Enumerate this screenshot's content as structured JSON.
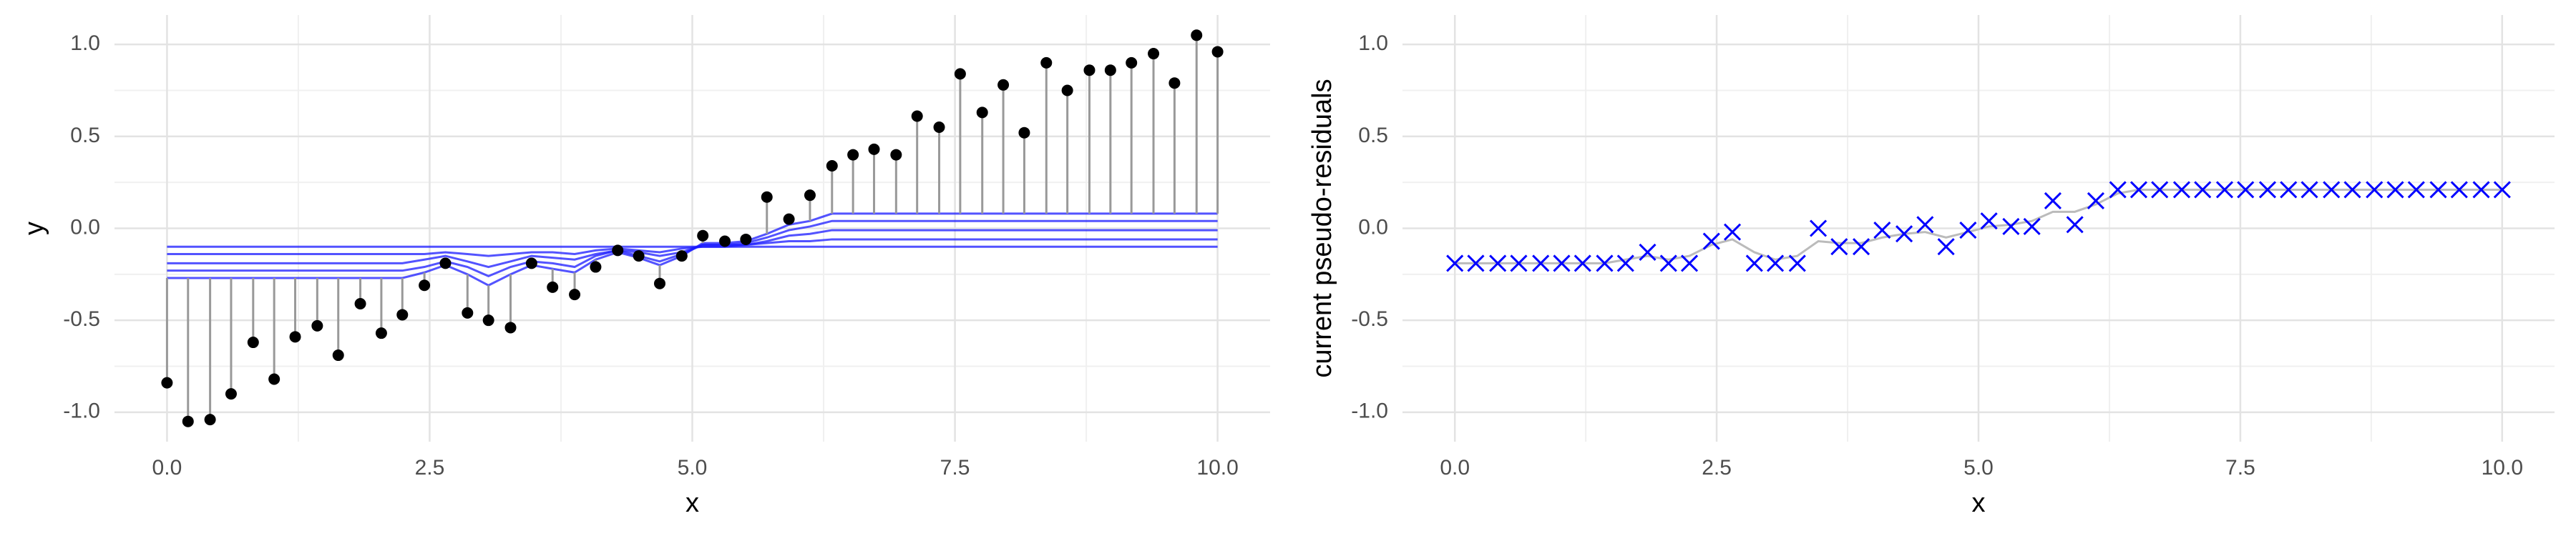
{
  "chart_data": [
    {
      "type": "stem",
      "xlabel": "x",
      "ylabel": "y",
      "x": [
        0,
        0.2,
        0.41,
        0.61,
        0.82,
        1.02,
        1.22,
        1.43,
        1.63,
        1.84,
        2.04,
        2.24,
        2.45,
        2.65,
        2.86,
        3.06,
        3.27,
        3.47,
        3.67,
        3.88,
        4.08,
        4.29,
        4.49,
        4.69,
        4.9,
        5.1,
        5.31,
        5.51,
        5.71,
        5.92,
        6.12,
        6.33,
        6.53,
        6.73,
        6.94,
        7.14,
        7.35,
        7.55,
        7.76,
        7.96,
        8.16,
        8.37,
        8.57,
        8.78,
        8.98,
        9.18,
        9.39,
        9.59,
        9.8,
        10
      ],
      "values": [
        -0.84,
        -1.05,
        -1.04,
        -0.9,
        -0.62,
        -0.82,
        -0.59,
        -0.53,
        -0.69,
        -0.41,
        -0.57,
        -0.47,
        -0.31,
        -0.19,
        -0.46,
        -0.5,
        -0.54,
        -0.19,
        -0.32,
        -0.36,
        -0.21,
        -0.12,
        -0.15,
        -0.3,
        -0.15,
        -0.04,
        -0.07,
        -0.06,
        0.17,
        0.05,
        0.18,
        0.34,
        0.4,
        0.43,
        0.4,
        0.61,
        0.55,
        0.84,
        0.63,
        0.78,
        0.52,
        0.9,
        0.75,
        0.86,
        0.86,
        0.9,
        0.95,
        0.79,
        1.05,
        0.96
      ],
      "color": "#000000",
      "stem_color": "#999999",
      "fit_color": "#1a1aff",
      "fits": [
        {
          "values": [
            -0.1,
            -0.1,
            -0.1,
            -0.1,
            -0.1,
            -0.1,
            -0.1,
            -0.1,
            -0.1,
            -0.1,
            -0.1,
            -0.1,
            -0.1,
            -0.1,
            -0.1,
            -0.1,
            -0.1,
            -0.1,
            -0.1,
            -0.1,
            -0.1,
            -0.1,
            -0.1,
            -0.1,
            -0.1,
            -0.1,
            -0.1,
            -0.1,
            -0.1,
            -0.1,
            -0.1,
            -0.1,
            -0.1,
            -0.1,
            -0.1,
            -0.1,
            -0.1,
            -0.1,
            -0.1,
            -0.1,
            -0.1,
            -0.1,
            -0.1,
            -0.1,
            -0.1,
            -0.1,
            -0.1,
            -0.1,
            -0.1,
            -0.1
          ]
        },
        {
          "values": [
            -0.14,
            -0.14,
            -0.14,
            -0.14,
            -0.14,
            -0.14,
            -0.14,
            -0.14,
            -0.14,
            -0.14,
            -0.14,
            -0.14,
            -0.14,
            -0.13,
            -0.14,
            -0.15,
            -0.14,
            -0.13,
            -0.13,
            -0.14,
            -0.12,
            -0.11,
            -0.12,
            -0.13,
            -0.11,
            -0.1,
            -0.1,
            -0.09,
            -0.08,
            -0.07,
            -0.07,
            -0.06,
            -0.06,
            -0.06,
            -0.06,
            -0.06,
            -0.06,
            -0.06,
            -0.06,
            -0.06,
            -0.06,
            -0.06,
            -0.06,
            -0.06,
            -0.06,
            -0.06,
            -0.06,
            -0.06,
            -0.06,
            -0.06
          ]
        },
        {
          "values": [
            -0.19,
            -0.19,
            -0.19,
            -0.19,
            -0.19,
            -0.19,
            -0.19,
            -0.19,
            -0.19,
            -0.19,
            -0.19,
            -0.19,
            -0.17,
            -0.15,
            -0.18,
            -0.21,
            -0.18,
            -0.15,
            -0.16,
            -0.17,
            -0.14,
            -0.12,
            -0.13,
            -0.15,
            -0.13,
            -0.09,
            -0.09,
            -0.09,
            -0.07,
            -0.04,
            -0.03,
            -0.01,
            -0.01,
            -0.01,
            -0.01,
            -0.01,
            -0.01,
            -0.01,
            -0.01,
            -0.01,
            -0.01,
            -0.01,
            -0.01,
            -0.01,
            -0.01,
            -0.01,
            -0.01,
            -0.01,
            -0.01,
            -0.01
          ]
        },
        {
          "values": [
            -0.23,
            -0.23,
            -0.23,
            -0.23,
            -0.23,
            -0.23,
            -0.23,
            -0.23,
            -0.23,
            -0.23,
            -0.23,
            -0.23,
            -0.21,
            -0.18,
            -0.21,
            -0.26,
            -0.21,
            -0.18,
            -0.19,
            -0.21,
            -0.15,
            -0.12,
            -0.15,
            -0.18,
            -0.14,
            -0.09,
            -0.09,
            -0.08,
            -0.05,
            -0.01,
            0.01,
            0.04,
            0.04,
            0.04,
            0.04,
            0.04,
            0.04,
            0.04,
            0.04,
            0.04,
            0.04,
            0.04,
            0.04,
            0.04,
            0.04,
            0.04,
            0.04,
            0.04,
            0.04,
            0.04
          ]
        },
        {
          "values": [
            -0.27,
            -0.27,
            -0.27,
            -0.27,
            -0.27,
            -0.27,
            -0.27,
            -0.27,
            -0.27,
            -0.27,
            -0.27,
            -0.27,
            -0.24,
            -0.2,
            -0.25,
            -0.31,
            -0.25,
            -0.2,
            -0.22,
            -0.24,
            -0.17,
            -0.13,
            -0.16,
            -0.2,
            -0.15,
            -0.08,
            -0.08,
            -0.07,
            -0.03,
            0.02,
            0.04,
            0.08,
            0.08,
            0.08,
            0.08,
            0.08,
            0.08,
            0.08,
            0.08,
            0.08,
            0.08,
            0.08,
            0.08,
            0.08,
            0.08,
            0.08,
            0.08,
            0.08,
            0.08,
            0.08
          ]
        }
      ],
      "xlim": [
        -0.5,
        10.5
      ],
      "ylim": [
        -1.16,
        1.16
      ],
      "xticks": [
        {
          "value": 0,
          "label": "0.0"
        },
        {
          "value": 2.5,
          "label": "2.5"
        },
        {
          "value": 5,
          "label": "5.0"
        },
        {
          "value": 7.5,
          "label": "7.5"
        },
        {
          "value": 10,
          "label": "10.0"
        }
      ],
      "yticks": [
        {
          "value": -1,
          "label": "-1.0"
        },
        {
          "value": -0.5,
          "label": "-0.5"
        },
        {
          "value": 0,
          "label": "0.0"
        },
        {
          "value": 0.5,
          "label": "0.5"
        },
        {
          "value": 1,
          "label": "1.0"
        }
      ],
      "grid": true,
      "minor_grid": true
    },
    {
      "type": "scatter",
      "xlabel": "x",
      "ylabel": "current pseudo-residuals",
      "marker": "x",
      "color": "#0000ff",
      "x": [
        0,
        0.2,
        0.41,
        0.61,
        0.82,
        1.02,
        1.22,
        1.43,
        1.63,
        1.84,
        2.04,
        2.24,
        2.45,
        2.65,
        2.86,
        3.06,
        3.27,
        3.47,
        3.67,
        3.88,
        4.08,
        4.29,
        4.49,
        4.69,
        4.9,
        5.1,
        5.31,
        5.51,
        5.71,
        5.92,
        6.12,
        6.33,
        6.53,
        6.73,
        6.94,
        7.14,
        7.35,
        7.55,
        7.76,
        7.96,
        8.16,
        8.37,
        8.57,
        8.78,
        8.98,
        9.18,
        9.39,
        9.59,
        9.8,
        10
      ],
      "values": [
        -0.19,
        -0.19,
        -0.19,
        -0.19,
        -0.19,
        -0.19,
        -0.19,
        -0.19,
        -0.19,
        -0.13,
        -0.19,
        -0.19,
        -0.07,
        -0.02,
        -0.19,
        -0.19,
        -0.19,
        0,
        -0.1,
        -0.1,
        -0.01,
        -0.03,
        0.02,
        -0.1,
        -0.01,
        0.04,
        0.01,
        0.01,
        0.15,
        0.02,
        0.15,
        0.21,
        0.21,
        0.21,
        0.21,
        0.21,
        0.21,
        0.21,
        0.21,
        0.21,
        0.21,
        0.21,
        0.21,
        0.21,
        0.21,
        0.21,
        0.21,
        0.21,
        0.21,
        0.21
      ],
      "line": {
        "color": "#bbbbbb",
        "values": [
          -0.19,
          -0.19,
          -0.19,
          -0.19,
          -0.19,
          -0.19,
          -0.19,
          -0.19,
          -0.17,
          -0.15,
          -0.17,
          -0.15,
          -0.09,
          -0.06,
          -0.13,
          -0.17,
          -0.15,
          -0.07,
          -0.08,
          -0.08,
          -0.05,
          -0.03,
          -0.02,
          -0.05,
          -0.02,
          0.01,
          0.02,
          0.04,
          0.09,
          0.09,
          0.13,
          0.19,
          0.21,
          0.21,
          0.21,
          0.21,
          0.21,
          0.21,
          0.21,
          0.21,
          0.21,
          0.21,
          0.21,
          0.21,
          0.21,
          0.21,
          0.21,
          0.21,
          0.21,
          0.21
        ]
      },
      "xlim": [
        -0.5,
        10.5
      ],
      "ylim": [
        -1.16,
        1.16
      ],
      "xticks": [
        {
          "value": 0,
          "label": "0.0"
        },
        {
          "value": 2.5,
          "label": "2.5"
        },
        {
          "value": 5,
          "label": "5.0"
        },
        {
          "value": 7.5,
          "label": "7.5"
        },
        {
          "value": 10,
          "label": "10.0"
        }
      ],
      "yticks": [
        {
          "value": -1,
          "label": "-1.0"
        },
        {
          "value": -0.5,
          "label": "-0.5"
        },
        {
          "value": 0,
          "label": "0.0"
        },
        {
          "value": 0.5,
          "label": "0.5"
        },
        {
          "value": 1,
          "label": "1.0"
        }
      ],
      "grid": true,
      "minor_grid": true
    }
  ]
}
